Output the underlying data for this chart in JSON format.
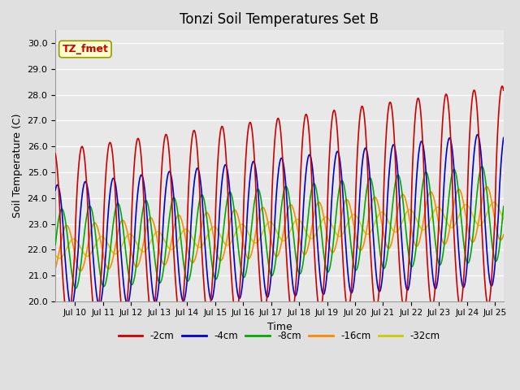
{
  "title": "Tonzi Soil Temperatures Set B",
  "xlabel": "Time",
  "ylabel": "Soil Temperature (C)",
  "xlim_days": [
    9.3,
    25.3
  ],
  "ylim": [
    20.0,
    30.5
  ],
  "yticks": [
    20.0,
    21.0,
    22.0,
    23.0,
    24.0,
    25.0,
    26.0,
    27.0,
    28.0,
    29.0,
    30.0
  ],
  "xtick_labels": [
    "Jul 10",
    "Jul 11",
    "Jul 12",
    "Jul 13",
    "Jul 14",
    "Jul 15",
    "Jul 16",
    "Jul 17",
    "Jul 18",
    "Jul 19",
    "Jul 20",
    "Jul 21",
    "Jul 22",
    "Jul 23",
    "Jul 24",
    "Jul 25"
  ],
  "xtick_positions": [
    10,
    11,
    12,
    13,
    14,
    15,
    16,
    17,
    18,
    19,
    20,
    21,
    22,
    23,
    24,
    25
  ],
  "series": {
    "-2cm": {
      "color": "#cc0000",
      "lw": 1.2,
      "depth": 0
    },
    "-4cm": {
      "color": "#0000cc",
      "lw": 1.2,
      "depth": 1
    },
    "-8cm": {
      "color": "#00aa00",
      "lw": 1.2,
      "depth": 2
    },
    "-16cm": {
      "color": "#ff8800",
      "lw": 1.2,
      "depth": 3
    },
    "-32cm": {
      "color": "#cccc00",
      "lw": 1.2,
      "depth": 4
    }
  },
  "legend_order": [
    "-2cm",
    "-4cm",
    "-8cm",
    "-16cm",
    "-32cm"
  ],
  "annotation_text": "TZ_fmet",
  "annotation_color": "#cc0000",
  "annotation_bg": "#ffffcc",
  "annotation_border": "#999900",
  "bg_color": "#e0e0e0",
  "plot_bg": "#e8e8e8",
  "grid_color": "#ffffff",
  "title_fontsize": 12
}
